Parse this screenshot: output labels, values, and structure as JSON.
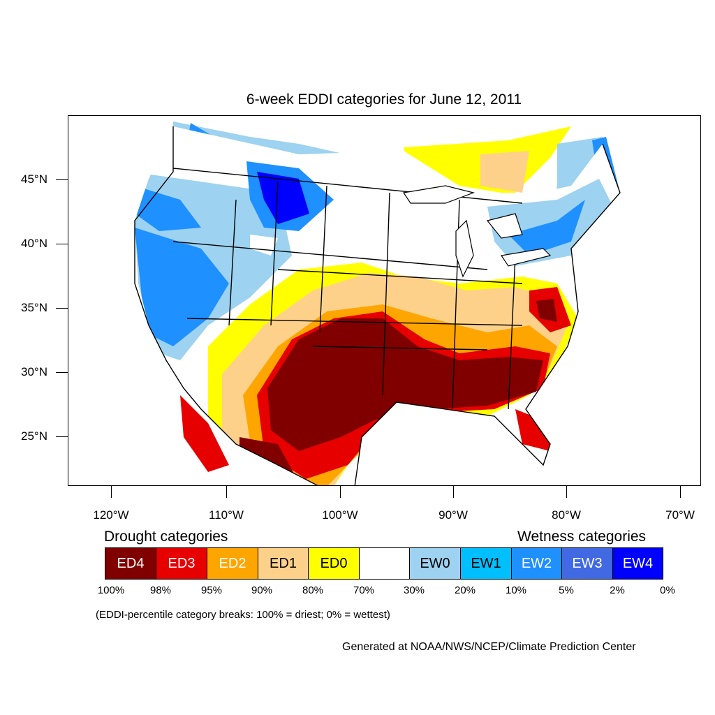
{
  "title": "6-week EDDI categories for June 12, 2011",
  "map": {
    "latitude_labels": [
      "45°N",
      "40°N",
      "35°N",
      "30°N",
      "25°N"
    ],
    "longitude_labels": [
      "120°W",
      "110°W",
      "100°W",
      "90°W",
      "80°W",
      "70°W"
    ],
    "colors": {
      "ED4": "#800000",
      "ED3": "#e60000",
      "ED2": "#ffa500",
      "ED1": "#fed18b",
      "ED0": "#ffff00",
      "neutral": "#ffffff",
      "EW0": "#9dd2f0",
      "EW1": "#00bfff",
      "EW2": "#1e90ff",
      "EW3": "#4169e1",
      "EW4": "#0000ff"
    }
  },
  "legend": {
    "drought_heading": "Drought categories",
    "wetness_heading": "Wetness categories",
    "categories": [
      {
        "label": "ED4",
        "color": "#800000",
        "text_color": "#ffffff"
      },
      {
        "label": "ED3",
        "color": "#e60000",
        "text_color": "#ffffff"
      },
      {
        "label": "ED2",
        "color": "#ffa500",
        "text_color": "#ffffff"
      },
      {
        "label": "ED1",
        "color": "#fed18b",
        "text_color": "#000000"
      },
      {
        "label": "ED0",
        "color": "#ffff00",
        "text_color": "#000000"
      },
      {
        "label": "",
        "color": "#ffffff",
        "text_color": "#000000"
      },
      {
        "label": "EW0",
        "color": "#9dd2f0",
        "text_color": "#000000"
      },
      {
        "label": "EW1",
        "color": "#00bfff",
        "text_color": "#000000"
      },
      {
        "label": "EW2",
        "color": "#1e90ff",
        "text_color": "#ffffff"
      },
      {
        "label": "EW3",
        "color": "#4169e1",
        "text_color": "#ffffff"
      },
      {
        "label": "EW4",
        "color": "#0000ff",
        "text_color": "#ffffff"
      }
    ],
    "percentiles": [
      "100%",
      "98%",
      "95%",
      "90%",
      "80%",
      "70%",
      "30%",
      "20%",
      "10%",
      "5%",
      "2%",
      "0%"
    ]
  },
  "breaks_note": "(EDDI-percentile category breaks: 100% = driest; 0% = wettest)",
  "credit": "Generated at NOAA/NWS/NCEP/Climate Prediction Center"
}
